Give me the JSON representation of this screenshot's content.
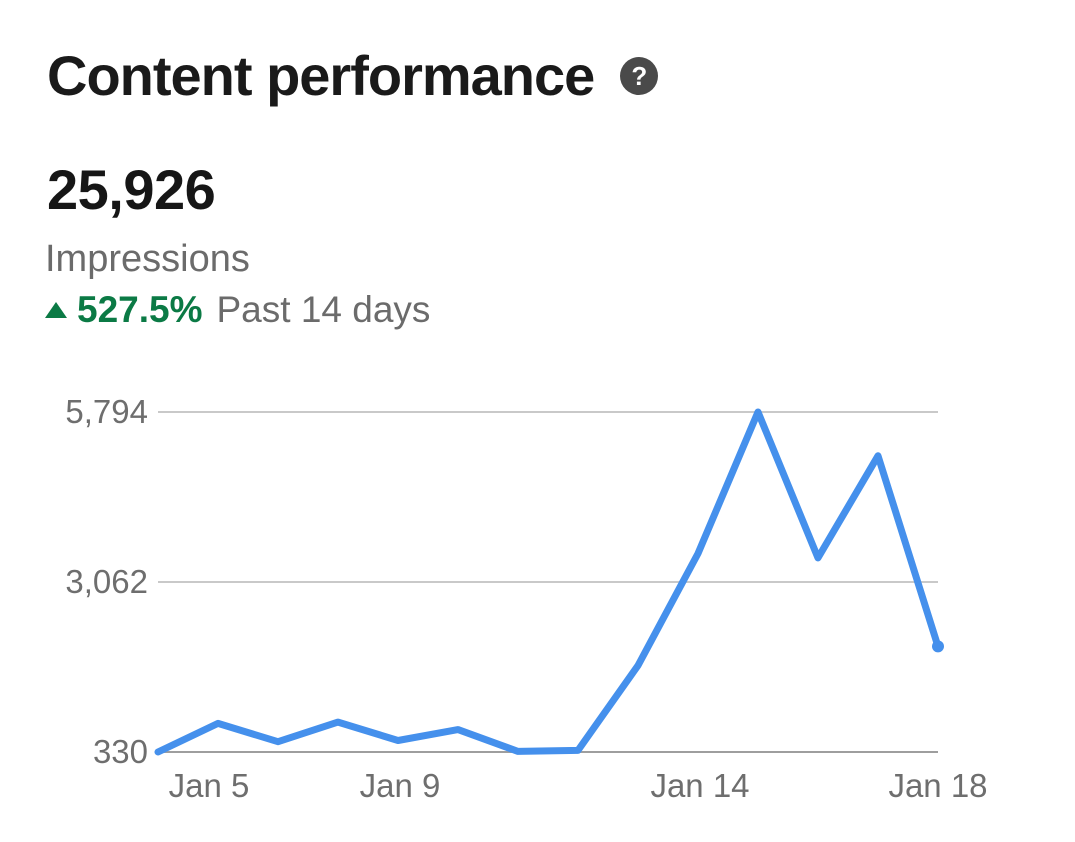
{
  "header": {
    "title": "Content performance",
    "help_glyph": "?",
    "metric_value": "25,926",
    "metric_label": "Impressions",
    "trend_value": "527.5%",
    "trend_direction": "up",
    "trend_period": "Past 14 days"
  },
  "colors": {
    "line_blue": "#4590ec",
    "trend_green": "#0b7a45",
    "gridline": "#c9c9c9",
    "axis_line": "#9e9e9e",
    "text_primary": "#1a1a1a",
    "text_secondary": "#6b6b6b"
  },
  "chart_data": {
    "type": "line",
    "title": "Impressions, past 14 days",
    "x": [
      "Jan 5",
      "Jan 6",
      "Jan 7",
      "Jan 8",
      "Jan 9",
      "Jan 10",
      "Jan 11",
      "Jan 12",
      "Jan 13",
      "Jan 14",
      "Jan 15",
      "Jan 16",
      "Jan 17",
      "Jan 18"
    ],
    "values": [
      330,
      790,
      495,
      810,
      515,
      690,
      340,
      355,
      1720,
      3520,
      5794,
      3450,
      5090,
      2027
    ],
    "series_name": "Impressions",
    "total": 25926,
    "ylim": [
      330,
      5794
    ],
    "y_ticks": [
      330,
      3062,
      5794
    ],
    "y_tick_labels": [
      "330",
      "3,062",
      "5,794"
    ],
    "x_tick_labels": [
      "Jan 5",
      "Jan 9",
      "Jan 14",
      "Jan 18"
    ],
    "x_tick_indices": [
      0,
      4,
      9,
      13
    ],
    "grid": "horizontal",
    "legend": "none",
    "line_color": "#4590ec"
  }
}
